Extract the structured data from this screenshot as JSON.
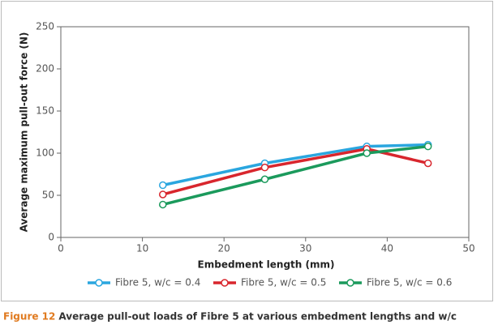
{
  "chart_data": {
    "type": "line",
    "figure_label": "Figure 12",
    "title": "Average pull-out loads of Fibre 5 at various embedment lengths and w/c",
    "x_label": "Embedment length (mm)",
    "y_label": "Average maximum pull-out force (N)",
    "x": [
      12.5,
      25,
      37.5,
      45
    ],
    "series": [
      {
        "name": "Fibre 5, w/c = 0.4",
        "color": "#2aa6df",
        "values": [
          62,
          88,
          108,
          110
        ]
      },
      {
        "name": "Fibre 5, w/c = 0.5",
        "color": "#d8262d",
        "values": [
          51,
          83,
          105,
          88
        ]
      },
      {
        "name": "Fibre 5, w/c = 0.6",
        "color": "#1b9a5c",
        "values": [
          39,
          69,
          100,
          108
        ]
      }
    ],
    "xlim": [
      0,
      50
    ],
    "xticks": [
      0,
      10,
      20,
      30,
      40,
      50
    ],
    "ylim": [
      0,
      250
    ],
    "yticks": [
      0,
      50,
      100,
      150,
      200,
      250
    ],
    "grid": false,
    "legend": "bottom"
  }
}
